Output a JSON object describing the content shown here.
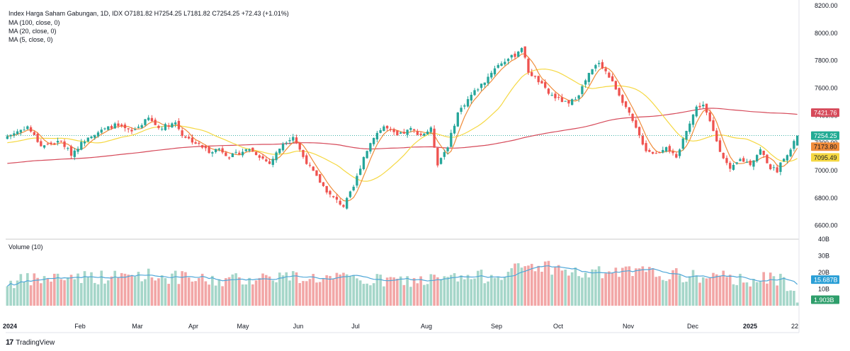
{
  "header": {
    "symbol_line": "Index Harga Saham Gabungan, 1D, IDX   O7181.82  H7254.25  L7181.82  C7254.25  +72.43 (+1.01%)",
    "ma100": "MA (100, close, 0)",
    "ma20": "MA (20, close, 0)",
    "ma5": "MA (5, close, 0)"
  },
  "volume_title": "Volume (10)",
  "brand": "TradingView",
  "colors": {
    "up": "#26a69a",
    "down": "#ef5350",
    "ma100": "#d64a5a",
    "ma20": "#f5d842",
    "ma5": "#f08c3a",
    "vol_up": "#a5d6c9",
    "vol_down": "#f2a6a6",
    "vol_ma": "#4fa7d8"
  },
  "chart_data": {
    "type": "candlestick",
    "price_axis": {
      "min": 6500,
      "max": 8200,
      "ticks": [
        "6600.00",
        "6800.00",
        "7000.00",
        "7200.00",
        "7400.00",
        "7600.00",
        "7800.00",
        "8000.00",
        "8200.00"
      ]
    },
    "volume_axis": {
      "min": 0,
      "max": 40,
      "ticks": [
        "10B",
        "20B",
        "30B",
        "40B"
      ]
    },
    "x_labels": [
      "2024",
      "Feb",
      "Mar",
      "Apr",
      "May",
      "Jun",
      "Jul",
      "Aug",
      "Sep",
      "Oct",
      "Nov",
      "Dec",
      "2025",
      "22"
    ],
    "last_price": "7254.25",
    "price_labels": {
      "ma100": "7421.76",
      "ma5": "7173.80",
      "ma20": "7095.49"
    },
    "volume_labels": {
      "vol_ma": "15.687B",
      "last_volume": "1.903B"
    },
    "close_anchors": [
      [
        0,
        7250
      ],
      [
        6,
        7320
      ],
      [
        10,
        7180
      ],
      [
        16,
        7210
      ],
      [
        19,
        7120
      ],
      [
        24,
        7250
      ],
      [
        32,
        7330
      ],
      [
        37,
        7280
      ],
      [
        42,
        7380
      ],
      [
        45,
        7310
      ],
      [
        50,
        7350
      ],
      [
        52,
        7260
      ],
      [
        56,
        7200
      ],
      [
        60,
        7140
      ],
      [
        63,
        7160
      ],
      [
        66,
        7100
      ],
      [
        72,
        7160
      ],
      [
        78,
        7050
      ],
      [
        82,
        7200
      ],
      [
        85,
        7250
      ],
      [
        88,
        7100
      ],
      [
        92,
        6950
      ],
      [
        96,
        6820
      ],
      [
        100,
        6740
      ],
      [
        103,
        6880
      ],
      [
        106,
        7100
      ],
      [
        109,
        7250
      ],
      [
        112,
        7320
      ],
      [
        116,
        7250
      ],
      [
        120,
        7300
      ],
      [
        123,
        7260
      ],
      [
        126,
        7300
      ],
      [
        128,
        7050
      ],
      [
        131,
        7180
      ],
      [
        134,
        7420
      ],
      [
        138,
        7550
      ],
      [
        142,
        7650
      ],
      [
        145,
        7750
      ],
      [
        148,
        7800
      ],
      [
        151,
        7840
      ],
      [
        153,
        7900
      ],
      [
        155,
        7720
      ],
      [
        158,
        7650
      ],
      [
        161,
        7560
      ],
      [
        164,
        7520
      ],
      [
        167,
        7480
      ],
      [
        170,
        7560
      ],
      [
        173,
        7700
      ],
      [
        176,
        7790
      ],
      [
        178,
        7720
      ],
      [
        181,
        7600
      ],
      [
        184,
        7460
      ],
      [
        187,
        7300
      ],
      [
        190,
        7150
      ],
      [
        193,
        7120
      ],
      [
        196,
        7180
      ],
      [
        199,
        7080
      ],
      [
        202,
        7300
      ],
      [
        205,
        7460
      ],
      [
        207,
        7480
      ],
      [
        209,
        7350
      ],
      [
        212,
        7150
      ],
      [
        215,
        7000
      ],
      [
        218,
        7080
      ],
      [
        221,
        7050
      ],
      [
        224,
        7150
      ],
      [
        227,
        7020
      ],
      [
        229,
        7000
      ],
      [
        231,
        7100
      ],
      [
        233,
        7150
      ],
      [
        235,
        7254
      ]
    ],
    "volume_anchors": [
      [
        0,
        14
      ],
      [
        10,
        16
      ],
      [
        20,
        18
      ],
      [
        30,
        17
      ],
      [
        40,
        19
      ],
      [
        50,
        17
      ],
      [
        60,
        15
      ],
      [
        70,
        16
      ],
      [
        80,
        18
      ],
      [
        90,
        17
      ],
      [
        100,
        16
      ],
      [
        110,
        15
      ],
      [
        120,
        15
      ],
      [
        130,
        16
      ],
      [
        140,
        17
      ],
      [
        150,
        21
      ],
      [
        155,
        24
      ],
      [
        160,
        24
      ],
      [
        170,
        19
      ],
      [
        180,
        20
      ],
      [
        190,
        20
      ],
      [
        200,
        18
      ],
      [
        210,
        17
      ],
      [
        220,
        16
      ],
      [
        230,
        16
      ],
      [
        236,
        8
      ]
    ],
    "n_bars": 236
  }
}
